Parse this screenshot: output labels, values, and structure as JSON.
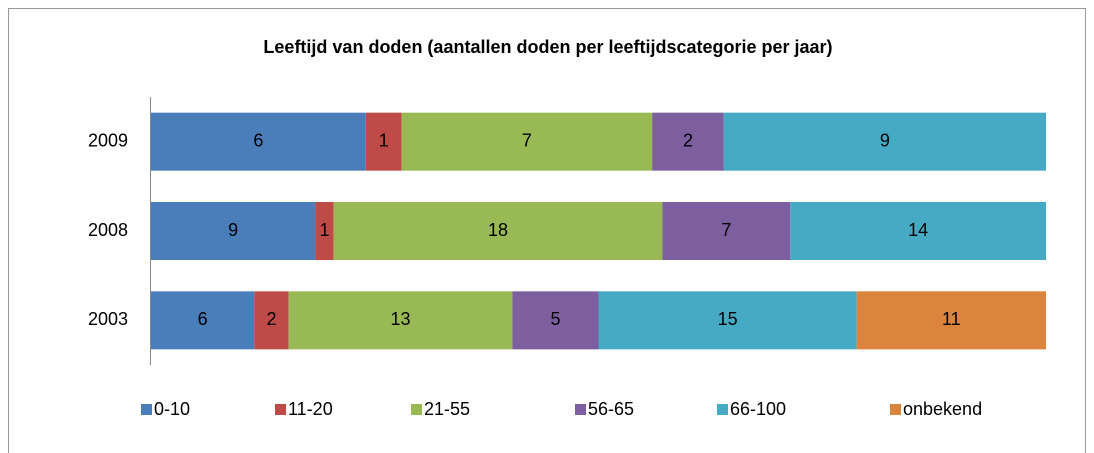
{
  "chart_data": {
    "type": "bar",
    "orientation": "horizontal",
    "stacking": "percent",
    "title": "Leeftijd van doden (aantallen doden per leeftijdscategorie per jaar)",
    "categories": [
      "2009",
      "2008",
      "2003"
    ],
    "series": [
      {
        "name": "0-10",
        "color": "#4a7ebb",
        "values": [
          6,
          9,
          6
        ]
      },
      {
        "name": "11-20",
        "color": "#be4b48",
        "values": [
          1,
          1,
          2
        ]
      },
      {
        "name": "21-55",
        "color": "#98b954",
        "values": [
          7,
          18,
          13
        ]
      },
      {
        "name": "56-65",
        "color": "#7d5fa0",
        "values": [
          2,
          7,
          5
        ]
      },
      {
        "name": "66-100",
        "color": "#46aac5",
        "values": [
          9,
          14,
          15
        ]
      },
      {
        "name": "onbekend",
        "color": "#db843d",
        "values": [
          null,
          null,
          11
        ]
      }
    ],
    "legend": "bottom"
  }
}
